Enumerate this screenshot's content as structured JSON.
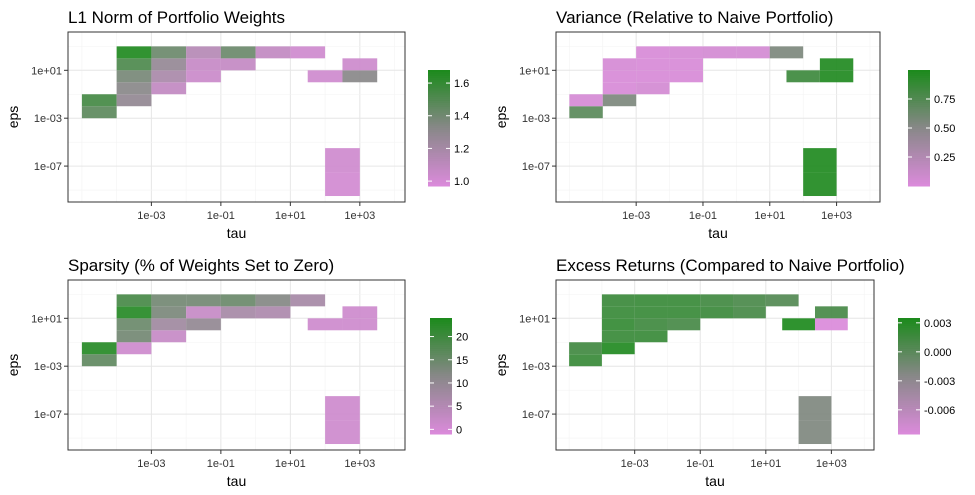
{
  "shared": {
    "xlabel": "tau",
    "ylabel": "eps",
    "x_ticks": [
      "1e-03",
      "1e-01",
      "1e+01",
      "1e+03"
    ],
    "y_ticks": [
      "1e+01",
      "1e-03",
      "1e-07"
    ],
    "color_low": "#da8ada",
    "color_mid": "#888888",
    "color_high": "#1d8a1d"
  },
  "chart_data": [
    {
      "type": "heatmap",
      "title": "L1 Norm of Portfolio Weights",
      "xlabel": "tau",
      "ylabel": "eps",
      "x_scale": "log10",
      "y_scale": "log10",
      "xlim_log10": [
        -5.4,
        4.3
      ],
      "ylim_log10": [
        -10.0,
        4.2
      ],
      "legend": {
        "ticks": [
          1.0,
          1.2,
          1.4,
          1.6
        ],
        "labels": [
          "1.0",
          "1.2",
          "1.4",
          "1.6"
        ],
        "range": [
          0.97,
          1.68
        ],
        "position": "right"
      },
      "cells": [
        {
          "tau": [
            -5.0,
            -4.0
          ],
          "eps": [
            -3.0,
            -2.0
          ],
          "value": 1.47
        },
        {
          "tau": [
            -5.0,
            -4.0
          ],
          "eps": [
            -2.0,
            -1.0
          ],
          "value": 1.55
        },
        {
          "tau": [
            -4.0,
            -3.0
          ],
          "eps": [
            -2.0,
            -1.0
          ],
          "value": 1.28
        },
        {
          "tau": [
            -4.0,
            -3.0
          ],
          "eps": [
            -1.0,
            0.0
          ],
          "value": 1.32
        },
        {
          "tau": [
            -4.0,
            -3.0
          ],
          "eps": [
            0.0,
            1.0
          ],
          "value": 1.38
        },
        {
          "tau": [
            -4.0,
            -3.0
          ],
          "eps": [
            1.0,
            2.0
          ],
          "value": 1.52
        },
        {
          "tau": [
            -4.0,
            -3.0
          ],
          "eps": [
            2.0,
            3.0
          ],
          "value": 1.67
        },
        {
          "tau": [
            -3.0,
            -2.0
          ],
          "eps": [
            -1.0,
            0.0
          ],
          "value": 1.08
        },
        {
          "tau": [
            -3.0,
            -2.0
          ],
          "eps": [
            0.0,
            1.0
          ],
          "value": 1.18
        },
        {
          "tau": [
            -3.0,
            -2.0
          ],
          "eps": [
            1.0,
            2.0
          ],
          "value": 1.27
        },
        {
          "tau": [
            -3.0,
            -2.0
          ],
          "eps": [
            2.0,
            3.0
          ],
          "value": 1.42
        },
        {
          "tau": [
            -2.0,
            -1.0
          ],
          "eps": [
            0.0,
            1.0
          ],
          "value": 1.04
        },
        {
          "tau": [
            -2.0,
            -1.0
          ],
          "eps": [
            1.0,
            2.0
          ],
          "value": 1.06
        },
        {
          "tau": [
            -2.0,
            -1.0
          ],
          "eps": [
            2.0,
            3.0
          ],
          "value": 1.13
        },
        {
          "tau": [
            -1.0,
            0.0
          ],
          "eps": [
            1.0,
            2.0
          ],
          "value": 1.07
        },
        {
          "tau": [
            -1.0,
            0.0
          ],
          "eps": [
            2.0,
            3.0
          ],
          "value": 1.42
        },
        {
          "tau": [
            0.0,
            1.0
          ],
          "eps": [
            2.0,
            3.0
          ],
          "value": 1.08
        },
        {
          "tau": [
            1.0,
            2.0
          ],
          "eps": [
            2.0,
            3.0
          ],
          "value": 1.02
        },
        {
          "tau": [
            1.5,
            2.5
          ],
          "eps": [
            0.0,
            1.0
          ],
          "value": 1.02
        },
        {
          "tau": [
            2.5,
            3.5
          ],
          "eps": [
            0.0,
            1.0
          ],
          "value": 1.32
        },
        {
          "tau": [
            2.5,
            3.5
          ],
          "eps": [
            1.0,
            2.0
          ],
          "value": 1.03
        },
        {
          "tau": [
            2.0,
            3.0
          ],
          "eps": [
            -9.5,
            -7.5
          ],
          "value": 1.01
        },
        {
          "tau": [
            2.0,
            3.0
          ],
          "eps": [
            -7.5,
            -5.5
          ],
          "value": 1.02
        }
      ]
    },
    {
      "type": "heatmap",
      "title": "Variance (Relative to Naive Portfolio)",
      "xlabel": "tau",
      "ylabel": "eps",
      "x_scale": "log10",
      "y_scale": "log10",
      "xlim_log10": [
        -5.4,
        4.3
      ],
      "ylim_log10": [
        -10.0,
        4.2
      ],
      "legend": {
        "ticks": [
          0.25,
          0.5,
          0.75
        ],
        "labels": [
          "0.25",
          "0.50",
          "0.75"
        ],
        "range": [
          0.0,
          1.0
        ],
        "position": "right"
      },
      "cells": [
        {
          "tau": [
            -5.0,
            -4.0
          ],
          "eps": [
            -3.0,
            -2.0
          ],
          "value": 0.72
        },
        {
          "tau": [
            -5.0,
            -4.0
          ],
          "eps": [
            -2.0,
            -1.0
          ],
          "value": 0.03
        },
        {
          "tau": [
            -4.0,
            -3.0
          ],
          "eps": [
            -2.0,
            -1.0
          ],
          "value": 0.55
        },
        {
          "tau": [
            -4.0,
            -3.0
          ],
          "eps": [
            -1.0,
            0.0
          ],
          "value": 0.02
        },
        {
          "tau": [
            -4.0,
            -3.0
          ],
          "eps": [
            0.0,
            1.0
          ],
          "value": 0.02
        },
        {
          "tau": [
            -4.0,
            -3.0
          ],
          "eps": [
            1.0,
            2.0
          ],
          "value": 0.03
        },
        {
          "tau": [
            -3.0,
            -2.0
          ],
          "eps": [
            -1.0,
            0.0
          ],
          "value": 0.05
        },
        {
          "tau": [
            -3.0,
            -2.0
          ],
          "eps": [
            0.0,
            1.0
          ],
          "value": 0.02
        },
        {
          "tau": [
            -3.0,
            -2.0
          ],
          "eps": [
            1.0,
            2.0
          ],
          "value": 0.02
        },
        {
          "tau": [
            -3.0,
            -2.0
          ],
          "eps": [
            2.0,
            3.0
          ],
          "value": 0.02
        },
        {
          "tau": [
            -2.0,
            -1.0
          ],
          "eps": [
            0.0,
            1.0
          ],
          "value": 0.02
        },
        {
          "tau": [
            -2.0,
            -1.0
          ],
          "eps": [
            1.0,
            2.0
          ],
          "value": 0.02
        },
        {
          "tau": [
            -2.0,
            -1.0
          ],
          "eps": [
            2.0,
            3.0
          ],
          "value": 0.03
        },
        {
          "tau": [
            -1.0,
            0.0
          ],
          "eps": [
            2.0,
            3.0
          ],
          "value": 0.05
        },
        {
          "tau": [
            0.0,
            1.0
          ],
          "eps": [
            2.0,
            3.0
          ],
          "value": 0.05
        },
        {
          "tau": [
            1.0,
            2.0
          ],
          "eps": [
            2.0,
            3.0
          ],
          "value": 0.55
        },
        {
          "tau": [
            1.5,
            2.5
          ],
          "eps": [
            0.0,
            1.0
          ],
          "value": 0.85
        },
        {
          "tau": [
            2.5,
            3.5
          ],
          "eps": [
            0.0,
            1.0
          ],
          "value": 0.98
        },
        {
          "tau": [
            2.5,
            3.5
          ],
          "eps": [
            1.0,
            2.0
          ],
          "value": 0.98
        },
        {
          "tau": [
            2.0,
            3.0
          ],
          "eps": [
            -9.5,
            -7.5
          ],
          "value": 0.98
        },
        {
          "tau": [
            2.0,
            3.0
          ],
          "eps": [
            -7.5,
            -5.5
          ],
          "value": 0.99
        }
      ]
    },
    {
      "type": "heatmap",
      "title": "Sparsity (% of Weights Set to Zero)",
      "xlabel": "tau",
      "ylabel": "eps",
      "x_scale": "log10",
      "y_scale": "log10",
      "xlim_log10": [
        -5.4,
        4.3
      ],
      "ylim_log10": [
        -10.0,
        4.2
      ],
      "legend": {
        "ticks": [
          0,
          5,
          10,
          15,
          20
        ],
        "labels": [
          "0",
          "5",
          "10",
          "15",
          "20"
        ],
        "range": [
          -1,
          24
        ],
        "position": "right"
      },
      "cells": [
        {
          "tau": [
            -5.0,
            -4.0
          ],
          "eps": [
            -3.0,
            -2.0
          ],
          "value": 16
        },
        {
          "tau": [
            -5.0,
            -4.0
          ],
          "eps": [
            -2.0,
            -1.0
          ],
          "value": 23
        },
        {
          "tau": [
            -4.0,
            -3.0
          ],
          "eps": [
            -2.0,
            -1.0
          ],
          "value": 1
        },
        {
          "tau": [
            -4.0,
            -3.0
          ],
          "eps": [
            -1.0,
            0.0
          ],
          "value": 14
        },
        {
          "tau": [
            -4.0,
            -3.0
          ],
          "eps": [
            0.0,
            1.0
          ],
          "value": 15
        },
        {
          "tau": [
            -4.0,
            -3.0
          ],
          "eps": [
            1.0,
            2.0
          ],
          "value": 23
        },
        {
          "tau": [
            -4.0,
            -3.0
          ],
          "eps": [
            2.0,
            3.0
          ],
          "value": 19
        },
        {
          "tau": [
            -3.0,
            -2.0
          ],
          "eps": [
            -1.0,
            0.0
          ],
          "value": 2
        },
        {
          "tau": [
            -3.0,
            -2.0
          ],
          "eps": [
            0.0,
            1.0
          ],
          "value": 8
        },
        {
          "tau": [
            -3.0,
            -2.0
          ],
          "eps": [
            1.0,
            2.0
          ],
          "value": 13
        },
        {
          "tau": [
            -3.0,
            -2.0
          ],
          "eps": [
            2.0,
            3.0
          ],
          "value": 14
        },
        {
          "tau": [
            -2.0,
            -1.0
          ],
          "eps": [
            0.0,
            1.0
          ],
          "value": 10
        },
        {
          "tau": [
            -2.0,
            -1.0
          ],
          "eps": [
            1.0,
            2.0
          ],
          "value": 2
        },
        {
          "tau": [
            -2.0,
            -1.0
          ],
          "eps": [
            2.0,
            3.0
          ],
          "value": 14
        },
        {
          "tau": [
            -1.0,
            0.0
          ],
          "eps": [
            1.0,
            2.0
          ],
          "value": 7
        },
        {
          "tau": [
            -1.0,
            0.0
          ],
          "eps": [
            2.0,
            3.0
          ],
          "value": 15
        },
        {
          "tau": [
            0.0,
            1.0
          ],
          "eps": [
            1.0,
            2.0
          ],
          "value": 6
        },
        {
          "tau": [
            0.0,
            1.0
          ],
          "eps": [
            2.0,
            3.0
          ],
          "value": 12
        },
        {
          "tau": [
            1.0,
            2.0
          ],
          "eps": [
            2.0,
            3.0
          ],
          "value": 7
        },
        {
          "tau": [
            1.5,
            2.5
          ],
          "eps": [
            0.0,
            1.0
          ],
          "value": 1
        },
        {
          "tau": [
            2.5,
            3.5
          ],
          "eps": [
            0.0,
            1.0
          ],
          "value": 1
        },
        {
          "tau": [
            2.5,
            3.5
          ],
          "eps": [
            1.0,
            2.0
          ],
          "value": 1
        },
        {
          "tau": [
            2.0,
            3.0
          ],
          "eps": [
            -9.5,
            -7.5
          ],
          "value": 1
        },
        {
          "tau": [
            2.0,
            3.0
          ],
          "eps": [
            -7.5,
            -5.5
          ],
          "value": 1
        }
      ]
    },
    {
      "type": "heatmap",
      "title": "Excess Returns (Compared to Naive Portfolio)",
      "xlabel": "tau",
      "ylabel": "eps",
      "x_scale": "log10",
      "y_scale": "log10",
      "xlim_log10": [
        -5.4,
        4.3
      ],
      "ylim_log10": [
        -10.0,
        4.2
      ],
      "legend": {
        "ticks": [
          0.003,
          0.0,
          -0.003,
          -0.006
        ],
        "labels": [
          "0.003",
          "0.000",
          "-0.003",
          "-0.006"
        ],
        "range": [
          -0.0085,
          0.0035
        ],
        "position": "right"
      },
      "cells": [
        {
          "tau": [
            -5.0,
            -4.0
          ],
          "eps": [
            -3.0,
            -2.0
          ],
          "value": 0.002
        },
        {
          "tau": [
            -5.0,
            -4.0
          ],
          "eps": [
            -2.0,
            -1.0
          ],
          "value": 0.0015
        },
        {
          "tau": [
            -4.0,
            -3.0
          ],
          "eps": [
            -2.0,
            -1.0
          ],
          "value": 0.0032
        },
        {
          "tau": [
            -4.0,
            -3.0
          ],
          "eps": [
            -1.0,
            0.0
          ],
          "value": 0.002
        },
        {
          "tau": [
            -4.0,
            -3.0
          ],
          "eps": [
            0.0,
            1.0
          ],
          "value": 0.0022
        },
        {
          "tau": [
            -4.0,
            -3.0
          ],
          "eps": [
            1.0,
            2.0
          ],
          "value": 0.002
        },
        {
          "tau": [
            -4.0,
            -3.0
          ],
          "eps": [
            2.0,
            3.0
          ],
          "value": 0.0018
        },
        {
          "tau": [
            -3.0,
            -2.0
          ],
          "eps": [
            -1.0,
            0.0
          ],
          "value": 0.002
        },
        {
          "tau": [
            -3.0,
            -2.0
          ],
          "eps": [
            0.0,
            1.0
          ],
          "value": 0.0016
        },
        {
          "tau": [
            -3.0,
            -2.0
          ],
          "eps": [
            1.0,
            2.0
          ],
          "value": 0.002
        },
        {
          "tau": [
            -3.0,
            -2.0
          ],
          "eps": [
            2.0,
            3.0
          ],
          "value": 0.002
        },
        {
          "tau": [
            -2.0,
            -1.0
          ],
          "eps": [
            0.0,
            1.0
          ],
          "value": 0.0012
        },
        {
          "tau": [
            -2.0,
            -1.0
          ],
          "eps": [
            1.0,
            2.0
          ],
          "value": 0.002
        },
        {
          "tau": [
            -2.0,
            -1.0
          ],
          "eps": [
            2.0,
            3.0
          ],
          "value": 0.002
        },
        {
          "tau": [
            -1.0,
            0.0
          ],
          "eps": [
            1.0,
            2.0
          ],
          "value": 0.0018
        },
        {
          "tau": [
            -1.0,
            0.0
          ],
          "eps": [
            2.0,
            3.0
          ],
          "value": 0.0015
        },
        {
          "tau": [
            0.0,
            1.0
          ],
          "eps": [
            1.0,
            2.0
          ],
          "value": 0.0012
        },
        {
          "tau": [
            0.0,
            1.0
          ],
          "eps": [
            2.0,
            3.0
          ],
          "value": 0.001
        },
        {
          "tau": [
            1.0,
            2.0
          ],
          "eps": [
            2.0,
            3.0
          ],
          "value": 0.0005
        },
        {
          "tau": [
            1.5,
            2.5
          ],
          "eps": [
            0.0,
            1.0
          ],
          "value": 0.0035
        },
        {
          "tau": [
            2.5,
            3.5
          ],
          "eps": [
            0.0,
            1.0
          ],
          "value": -0.0085
        },
        {
          "tau": [
            2.5,
            3.5
          ],
          "eps": [
            1.0,
            2.0
          ],
          "value": 0.0012
        },
        {
          "tau": [
            2.0,
            3.0
          ],
          "eps": [
            -9.5,
            -7.5
          ],
          "value": -0.002
        },
        {
          "tau": [
            2.0,
            3.0
          ],
          "eps": [
            -7.5,
            -5.5
          ],
          "value": -0.002
        }
      ]
    }
  ]
}
